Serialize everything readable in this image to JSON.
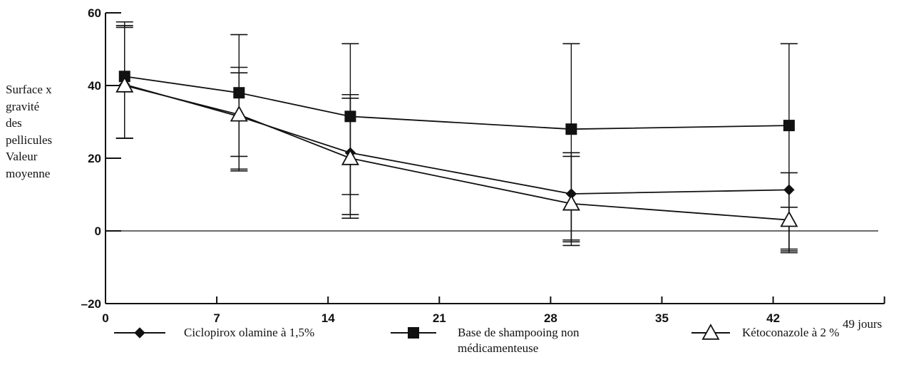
{
  "chart_data": {
    "type": "line",
    "ylabel_lines": [
      "Surface x",
      "gravité",
      "des",
      "pellicules",
      "Valeur",
      "moyenne"
    ],
    "x_unit_label": "49 jours",
    "x_ticks": [
      0,
      7,
      14,
      21,
      28,
      35,
      42
    ],
    "x_tick_labels": [
      "0",
      "7",
      "14",
      "21",
      "28",
      "35",
      "42"
    ],
    "xlim": [
      0,
      49
    ],
    "y_ticks": [
      -20,
      0,
      20,
      40,
      60
    ],
    "y_tick_labels": [
      "–20",
      "0",
      "20",
      "40",
      "60"
    ],
    "ylim": [
      -20,
      60
    ],
    "grid": false,
    "reference_line_y": 0,
    "legend_position": "bottom",
    "series": [
      {
        "name": "Ciclopirox olamine à 1,5%",
        "marker": "diamond",
        "x": [
          1.2,
          8.4,
          15.4,
          29.3,
          43.0
        ],
        "y": [
          40.3,
          31.5,
          21.5,
          10.2,
          11.3
        ],
        "err_low": [
          25.5,
          20.5,
          10.0,
          -3.0,
          -6.0
        ],
        "err_high": [
          56.5,
          45.0,
          37.5,
          21.5,
          16.0
        ]
      },
      {
        "name": "Base de shampooing non médicamenteuse",
        "marker": "square",
        "x": [
          1.2,
          8.4,
          15.4,
          29.3,
          43.0
        ],
        "y": [
          42.5,
          38.0,
          31.5,
          28.0,
          29.0
        ],
        "err_low": [
          25.5,
          16.5,
          4.5,
          -4.0,
          -5.5
        ],
        "err_high": [
          57.5,
          54.0,
          51.5,
          51.5,
          51.5
        ]
      },
      {
        "name": "Kétoconazole à 2 %",
        "marker": "triangle-open",
        "x": [
          1.2,
          8.4,
          15.4,
          29.3,
          43.0
        ],
        "y": [
          40.0,
          32.0,
          20.0,
          7.5,
          3.0
        ],
        "err_low": [
          25.5,
          17.0,
          3.5,
          -2.5,
          -5.0
        ],
        "err_high": [
          56.0,
          43.5,
          36.5,
          20.5,
          6.5
        ]
      }
    ]
  },
  "legend": {
    "items": [
      {
        "label_line1": "Ciclopirox olamine à 1,5%",
        "label_line2": ""
      },
      {
        "label_line1": "Base de shampooing non",
        "label_line2": "médicamenteuse"
      },
      {
        "label_line1": "Kétoconazole à 2 %",
        "label_line2": ""
      }
    ]
  }
}
